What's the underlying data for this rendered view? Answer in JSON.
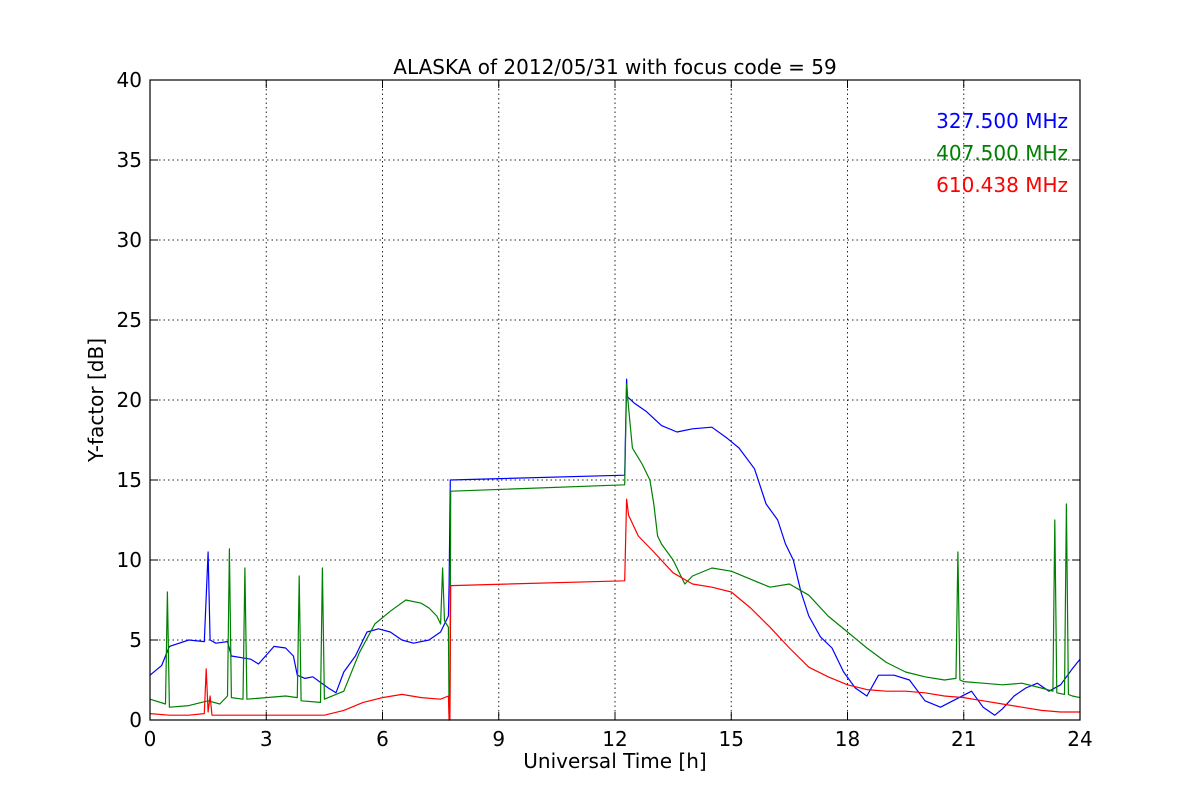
{
  "chart_data": {
    "type": "line",
    "title": "ALASKA of 2012/05/31 with focus code = 59",
    "xlabel": "Universal Time [h]",
    "ylabel": "Y-factor [dB]",
    "xlim": [
      0,
      24
    ],
    "ylim": [
      0,
      40
    ],
    "xticks": [
      0,
      3,
      6,
      9,
      12,
      15,
      18,
      21,
      24
    ],
    "yticks": [
      0,
      5,
      10,
      15,
      20,
      25,
      30,
      35,
      40
    ],
    "grid": true,
    "legend_position": "top-right",
    "series": [
      {
        "name": "327.500 MHz",
        "color": "#0000ff",
        "x": [
          0,
          0.3,
          0.5,
          1.0,
          1.4,
          1.5,
          1.55,
          1.7,
          2.0,
          2.1,
          2.6,
          2.8,
          3.2,
          3.5,
          3.7,
          3.8,
          4.0,
          4.2,
          4.6,
          4.8,
          5.0,
          5.3,
          5.6,
          5.9,
          6.2,
          6.5,
          6.8,
          7.2,
          7.5,
          7.7,
          7.72,
          7.75,
          12.25,
          12.3,
          12.32,
          12.5,
          12.8,
          13.2,
          13.6,
          14.0,
          14.5,
          14.9,
          15.2,
          15.6,
          15.9,
          16.2,
          16.4,
          16.6,
          16.8,
          17.0,
          17.3,
          17.6,
          17.9,
          18.2,
          18.5,
          18.8,
          19.2,
          19.6,
          20.0,
          20.4,
          20.8,
          21.2,
          21.5,
          21.8,
          22.0,
          22.3,
          22.6,
          22.9,
          23.2,
          23.5,
          23.8,
          24.0
        ],
        "y": [
          2.8,
          3.4,
          4.6,
          5.0,
          4.9,
          10.5,
          5.0,
          4.8,
          4.9,
          4.0,
          3.8,
          3.5,
          4.6,
          4.5,
          4.0,
          2.8,
          2.6,
          2.7,
          2.0,
          1.7,
          3.0,
          4.0,
          5.5,
          5.7,
          5.5,
          5.0,
          4.8,
          5.0,
          5.5,
          6.5,
          8.5,
          15.0,
          15.3,
          21.3,
          20.2,
          19.8,
          19.3,
          18.4,
          18.0,
          18.2,
          18.3,
          17.6,
          17.0,
          15.7,
          13.5,
          12.5,
          11.0,
          10.0,
          8.0,
          6.5,
          5.2,
          4.5,
          3.0,
          2.0,
          1.5,
          2.8,
          2.8,
          2.5,
          1.2,
          0.8,
          1.3,
          1.8,
          0.8,
          0.3,
          0.7,
          1.5,
          2.0,
          2.3,
          1.8,
          2.2,
          3.2,
          3.8
        ]
      },
      {
        "name": "407.500 MHz",
        "color": "#008000",
        "x": [
          0,
          0.4,
          0.45,
          0.5,
          1.0,
          1.5,
          1.8,
          2.0,
          2.05,
          2.1,
          2.4,
          2.45,
          2.5,
          3.0,
          3.5,
          3.8,
          3.85,
          3.9,
          4.4,
          4.45,
          4.5,
          5.0,
          5.4,
          5.8,
          6.2,
          6.6,
          7.0,
          7.2,
          7.4,
          7.5,
          7.55,
          7.6,
          7.7,
          7.72,
          7.74,
          7.76,
          7.78,
          12.25,
          12.3,
          12.35,
          12.45,
          12.7,
          12.9,
          13.0,
          13.1,
          13.2,
          13.5,
          13.8,
          14.0,
          14.5,
          15.0,
          15.5,
          16.0,
          16.5,
          17.0,
          17.5,
          18.0,
          18.5,
          19.0,
          19.5,
          20.0,
          20.5,
          20.8,
          20.85,
          20.9,
          21.0,
          21.5,
          22.0,
          22.5,
          23.0,
          23.3,
          23.35,
          23.4,
          23.6,
          23.65,
          23.7,
          23.8,
          24.0
        ],
        "y": [
          1.3,
          1.0,
          8.0,
          0.8,
          0.9,
          1.2,
          1.0,
          1.5,
          10.7,
          1.4,
          1.3,
          9.5,
          1.3,
          1.4,
          1.5,
          1.4,
          9.0,
          1.2,
          1.1,
          9.5,
          1.3,
          1.8,
          4.2,
          6.0,
          6.8,
          7.5,
          7.3,
          7.0,
          6.5,
          6.0,
          9.5,
          6.2,
          5.8,
          0.0,
          0.0,
          14.3,
          14.3,
          14.7,
          21.0,
          19.5,
          17.0,
          16.0,
          15.0,
          13.5,
          11.5,
          11.0,
          10.0,
          8.5,
          9.0,
          9.5,
          9.3,
          8.8,
          8.3,
          8.5,
          7.8,
          6.5,
          5.5,
          4.5,
          3.6,
          3.0,
          2.7,
          2.5,
          2.6,
          10.5,
          2.5,
          2.4,
          2.3,
          2.2,
          2.3,
          2.0,
          1.8,
          12.5,
          1.7,
          1.6,
          13.5,
          1.6,
          1.5,
          1.4
        ]
      },
      {
        "name": "610.438 MHz",
        "color": "#ff0000",
        "x": [
          0,
          0.5,
          1.0,
          1.4,
          1.45,
          1.5,
          1.55,
          1.6,
          2.0,
          2.5,
          3.0,
          3.5,
          4.0,
          4.5,
          5.0,
          5.5,
          6.0,
          6.5,
          7.0,
          7.5,
          7.7,
          7.72,
          7.74,
          7.76,
          7.78,
          12.25,
          12.3,
          12.35,
          12.6,
          13.0,
          13.5,
          14.0,
          14.5,
          15.0,
          15.5,
          16.0,
          16.5,
          17.0,
          17.5,
          18.0,
          18.5,
          19.0,
          19.5,
          20.0,
          20.5,
          21.0,
          21.5,
          22.0,
          22.5,
          23.0,
          23.5,
          24.0
        ],
        "y": [
          0.4,
          0.3,
          0.3,
          0.4,
          3.2,
          0.5,
          1.5,
          0.3,
          0.3,
          0.3,
          0.3,
          0.3,
          0.3,
          0.3,
          0.6,
          1.1,
          1.4,
          1.6,
          1.4,
          1.3,
          1.5,
          0.0,
          0.0,
          8.4,
          8.4,
          8.7,
          13.8,
          12.8,
          11.5,
          10.5,
          9.2,
          8.5,
          8.3,
          8.0,
          7.0,
          5.8,
          4.5,
          3.3,
          2.7,
          2.2,
          1.9,
          1.8,
          1.8,
          1.7,
          1.5,
          1.4,
          1.2,
          1.0,
          0.8,
          0.6,
          0.5,
          0.5
        ]
      }
    ]
  }
}
